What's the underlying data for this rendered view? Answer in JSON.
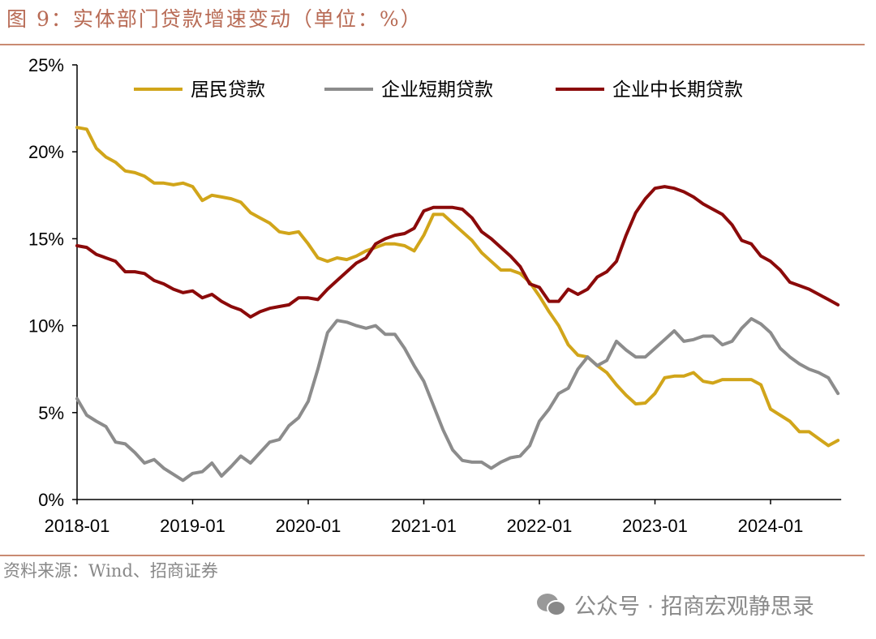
{
  "title": "图 9：实体部门贷款增速变动（单位：%）",
  "source": "资料来源：Wind、招商证券",
  "watermark": "公众号 · 招商宏观静思录",
  "chart_data": {
    "type": "line",
    "title": "图 9：实体部门贷款增速变动（单位：%）",
    "xlabel": "",
    "ylabel": "",
    "x_start": "2018-01",
    "x_end": "2024-08",
    "x_ticks": [
      "2018-01",
      "2019-01",
      "2020-01",
      "2021-01",
      "2022-01",
      "2023-01",
      "2024-01"
    ],
    "y_ticks": [
      "0%",
      "5%",
      "10%",
      "15%",
      "20%",
      "25%"
    ],
    "ylim": [
      0,
      25
    ],
    "grid": false,
    "legend": "top",
    "series": [
      {
        "name": "居民贷款",
        "color": "#D1A51A",
        "values": [
          21.4,
          21.3,
          20.2,
          19.7,
          19.4,
          18.9,
          18.8,
          18.6,
          18.2,
          18.2,
          18.1,
          18.2,
          18.0,
          17.2,
          17.5,
          17.4,
          17.3,
          17.1,
          16.5,
          16.2,
          15.9,
          15.4,
          15.3,
          15.4,
          14.7,
          13.9,
          13.7,
          13.9,
          13.8,
          14.0,
          14.3,
          14.5,
          14.7,
          14.7,
          14.6,
          14.3,
          15.2,
          16.4,
          16.4,
          15.9,
          15.4,
          14.9,
          14.2,
          13.7,
          13.2,
          13.2,
          13.0,
          12.5,
          11.7,
          10.8,
          10.0,
          8.9,
          8.3,
          8.2,
          7.7,
          7.3,
          6.6,
          6.0,
          5.5,
          5.55,
          6.1,
          7.0,
          7.1,
          7.1,
          7.3,
          6.8,
          6.7,
          6.9,
          6.9,
          6.9,
          6.9,
          6.6,
          5.2,
          4.85,
          4.5,
          3.9,
          3.9,
          3.5,
          3.1,
          3.4
        ]
      },
      {
        "name": "企业短期贷款",
        "color": "#8C8C8C",
        "values": [
          5.8,
          4.85,
          4.5,
          4.2,
          3.3,
          3.2,
          2.7,
          2.1,
          2.3,
          1.8,
          1.45,
          1.1,
          1.5,
          1.6,
          2.1,
          1.35,
          1.9,
          2.5,
          2.1,
          2.7,
          3.3,
          3.45,
          4.25,
          4.7,
          5.65,
          7.5,
          9.6,
          10.3,
          10.2,
          10.0,
          9.85,
          10.0,
          9.5,
          9.5,
          8.7,
          7.7,
          6.8,
          5.4,
          4.0,
          2.85,
          2.25,
          2.15,
          2.15,
          1.8,
          2.15,
          2.4,
          2.5,
          3.1,
          4.5,
          5.2,
          6.1,
          6.4,
          7.5,
          8.2,
          7.7,
          8.0,
          9.1,
          8.6,
          8.2,
          8.2,
          8.7,
          9.2,
          9.7,
          9.1,
          9.2,
          9.4,
          9.4,
          8.9,
          9.1,
          9.85,
          10.4,
          10.1,
          9.6,
          8.7,
          8.2,
          7.8,
          7.5,
          7.3,
          7.0,
          6.1
        ]
      },
      {
        "name": "企业中长期贷款",
        "color": "#8B0A0A",
        "values": [
          14.6,
          14.5,
          14.1,
          13.9,
          13.7,
          13.1,
          13.1,
          13.0,
          12.6,
          12.4,
          12.1,
          11.9,
          12.0,
          11.6,
          11.8,
          11.4,
          11.1,
          10.9,
          10.5,
          10.8,
          11.0,
          11.1,
          11.2,
          11.6,
          11.6,
          11.5,
          12.1,
          12.6,
          13.1,
          13.6,
          13.9,
          14.7,
          15.0,
          15.2,
          15.3,
          15.6,
          16.6,
          16.8,
          16.8,
          16.8,
          16.7,
          16.2,
          15.4,
          15.0,
          14.5,
          14.0,
          13.4,
          12.4,
          12.2,
          11.4,
          11.4,
          12.1,
          11.8,
          12.1,
          12.8,
          13.1,
          13.7,
          15.2,
          16.5,
          17.3,
          17.9,
          18.0,
          17.9,
          17.7,
          17.4,
          17.0,
          16.7,
          16.4,
          15.8,
          14.9,
          14.7,
          14.0,
          13.7,
          13.2,
          12.5,
          12.3,
          12.1,
          11.8,
          11.5,
          11.2
        ]
      }
    ]
  }
}
